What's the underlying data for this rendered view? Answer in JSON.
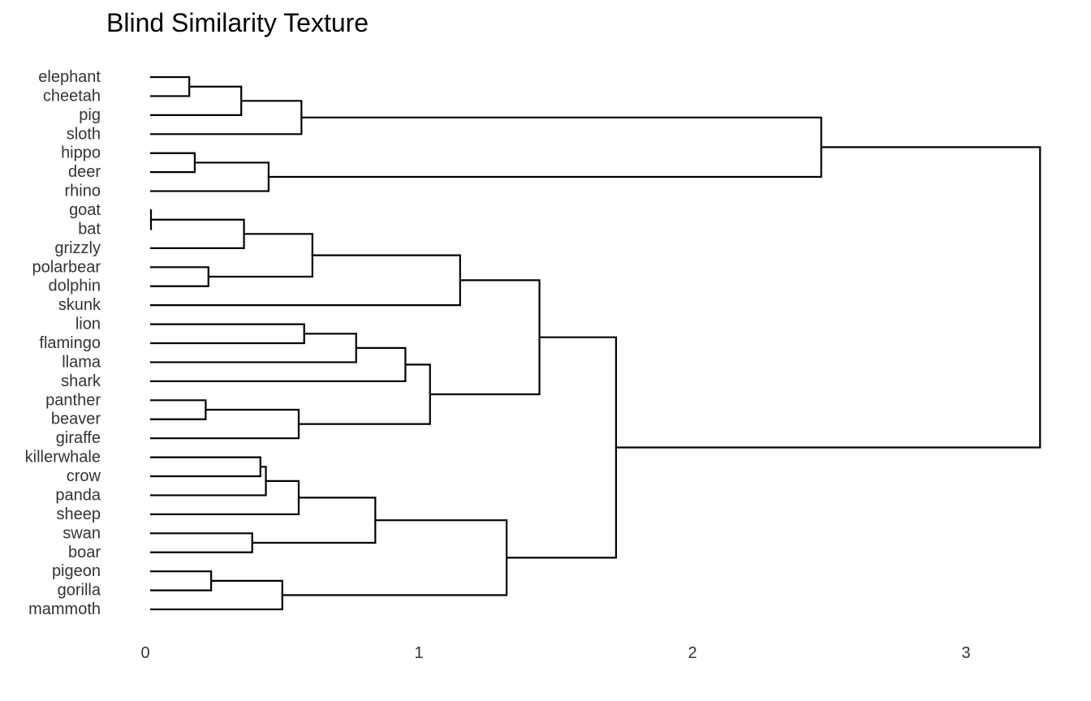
{
  "chart_data": {
    "type": "dendrogram",
    "title": "Blind Similarity Texture",
    "orientation": "horizontal",
    "xlim": [
      0,
      3.25
    ],
    "xticks": [
      0,
      1,
      2,
      3
    ],
    "grid": false,
    "leaves": [
      "elephant",
      "cheetah",
      "pig",
      "sloth",
      "hippo",
      "deer",
      "rhino",
      "goat",
      "bat",
      "grizzly",
      "polarbear",
      "dolphin",
      "skunk",
      "lion",
      "flamingo",
      "llama",
      "shark",
      "panther",
      "beaver",
      "giraffe",
      "killerwhale",
      "crow",
      "panda",
      "sheep",
      "swan",
      "boar",
      "pigeon",
      "gorilla",
      "mammoth"
    ],
    "merges": [
      {
        "a": "elephant",
        "b": "cheetah",
        "height": 0.14
      },
      {
        "a": "merge0",
        "b": "pig",
        "height": 0.33
      },
      {
        "a": "merge1",
        "b": "sloth",
        "height": 0.55
      },
      {
        "a": "hippo",
        "b": "deer",
        "height": 0.16
      },
      {
        "a": "merge3",
        "b": "rhino",
        "height": 0.43
      },
      {
        "a": "merge2",
        "b": "merge4",
        "height": 2.45
      },
      {
        "a": "goat",
        "b": "bat",
        "height": 0.0
      },
      {
        "a": "merge6",
        "b": "grizzly",
        "height": 0.34
      },
      {
        "a": "polarbear",
        "b": "dolphin",
        "height": 0.21
      },
      {
        "a": "merge7",
        "b": "merge8",
        "height": 0.59
      },
      {
        "a": "merge9",
        "b": "skunk",
        "height": 1.13
      },
      {
        "a": "lion",
        "b": "flamingo",
        "height": 0.56
      },
      {
        "a": "merge11",
        "b": "llama",
        "height": 0.75
      },
      {
        "a": "merge12",
        "b": "shark",
        "height": 0.93
      },
      {
        "a": "panther",
        "b": "beaver",
        "height": 0.2
      },
      {
        "a": "merge14",
        "b": "giraffe",
        "height": 0.54
      },
      {
        "a": "merge13",
        "b": "merge15",
        "height": 1.02
      },
      {
        "a": "merge10",
        "b": "merge16",
        "height": 1.42
      },
      {
        "a": "killerwhale",
        "b": "crow",
        "height": 0.4
      },
      {
        "a": "merge18",
        "b": "panda",
        "height": 0.42
      },
      {
        "a": "merge19",
        "b": "sheep",
        "height": 0.54
      },
      {
        "a": "swan",
        "b": "boar",
        "height": 0.37
      },
      {
        "a": "merge20",
        "b": "merge21",
        "height": 0.82
      },
      {
        "a": "pigeon",
        "b": "gorilla",
        "height": 0.22
      },
      {
        "a": "merge23",
        "b": "mammoth",
        "height": 0.48
      },
      {
        "a": "merge22",
        "b": "merge24",
        "height": 1.3
      },
      {
        "a": "merge17",
        "b": "merge25",
        "height": 1.7
      },
      {
        "a": "merge5",
        "b": "merge26",
        "height": 3.25
      }
    ]
  }
}
